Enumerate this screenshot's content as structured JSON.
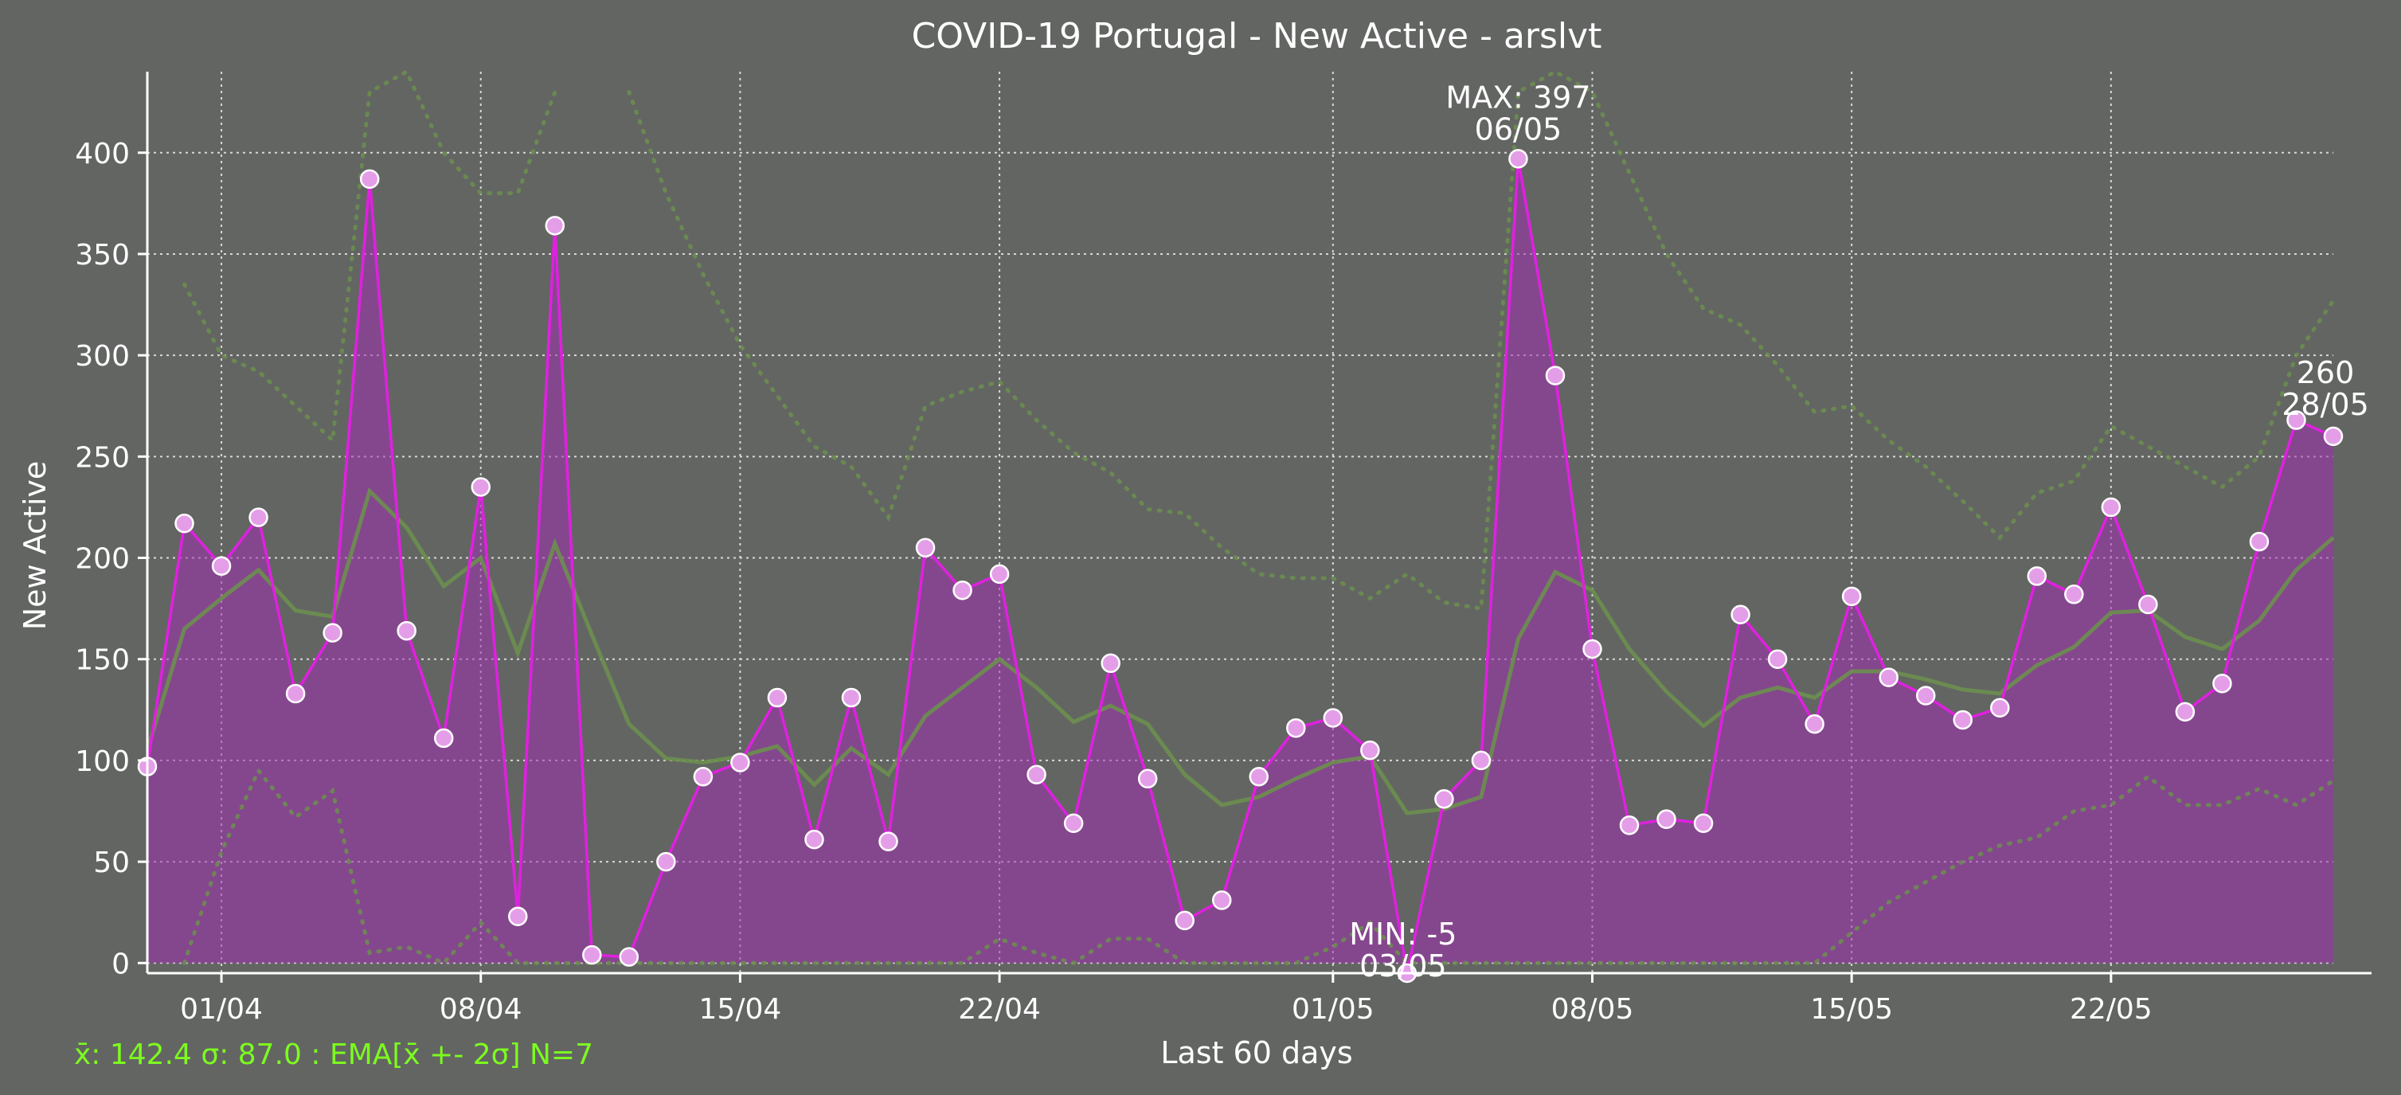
{
  "chart_data": {
    "type": "line",
    "title": "COVID-19 Portugal - New Active - arslvt",
    "xlabel": "Last 60 days",
    "ylabel": "New Active",
    "xlim": [
      "2020-03-30",
      "2020-05-28"
    ],
    "ylim": [
      -5,
      440
    ],
    "yticks": [
      0,
      50,
      100,
      150,
      200,
      250,
      300,
      350,
      400
    ],
    "xticks": [
      {
        "date": "2020-04-01",
        "label": "01/04"
      },
      {
        "date": "2020-04-08",
        "label": "08/04"
      },
      {
        "date": "2020-04-15",
        "label": "15/04"
      },
      {
        "date": "2020-04-22",
        "label": "22/04"
      },
      {
        "date": "2020-05-01",
        "label": "01/05"
      },
      {
        "date": "2020-05-08",
        "label": "08/05"
      },
      {
        "date": "2020-05-15",
        "label": "15/05"
      },
      {
        "date": "2020-05-22",
        "label": "22/05"
      }
    ],
    "grid": true,
    "x": [
      "2020-03-30",
      "2020-03-31",
      "2020-04-01",
      "2020-04-02",
      "2020-04-03",
      "2020-04-04",
      "2020-04-05",
      "2020-04-06",
      "2020-04-07",
      "2020-04-08",
      "2020-04-09",
      "2020-04-10",
      "2020-04-11",
      "2020-04-12",
      "2020-04-13",
      "2020-04-14",
      "2020-04-15",
      "2020-04-16",
      "2020-04-17",
      "2020-04-18",
      "2020-04-19",
      "2020-04-20",
      "2020-04-21",
      "2020-04-22",
      "2020-04-23",
      "2020-04-24",
      "2020-04-25",
      "2020-04-26",
      "2020-04-27",
      "2020-04-28",
      "2020-04-29",
      "2020-04-30",
      "2020-05-01",
      "2020-05-02",
      "2020-05-03",
      "2020-05-04",
      "2020-05-05",
      "2020-05-06",
      "2020-05-07",
      "2020-05-08",
      "2020-05-09",
      "2020-05-10",
      "2020-05-11",
      "2020-05-12",
      "2020-05-13",
      "2020-05-14",
      "2020-05-15",
      "2020-05-16",
      "2020-05-17",
      "2020-05-18",
      "2020-05-19",
      "2020-05-20",
      "2020-05-21",
      "2020-05-22",
      "2020-05-23",
      "2020-05-24",
      "2020-05-25",
      "2020-05-26",
      "2020-05-27",
      "2020-05-28"
    ],
    "series": [
      {
        "role": "daily",
        "color": "#e020e0",
        "values": [
          97,
          217,
          196,
          220,
          133,
          163,
          387,
          164,
          111,
          235,
          23,
          364,
          4,
          3,
          50,
          92,
          99,
          131,
          61,
          131,
          60,
          205,
          184,
          192,
          93,
          69,
          148,
          91,
          21,
          31,
          92,
          116,
          121,
          105,
          -5,
          81,
          100,
          397,
          290,
          155,
          68,
          71,
          69,
          172,
          150,
          118,
          181,
          141,
          132,
          120,
          126,
          191,
          182,
          225,
          177,
          124,
          138,
          208,
          268,
          260
        ]
      },
      {
        "role": "ema",
        "color": "#6b8f4e",
        "values": [
          105,
          165,
          180,
          194,
          174,
          171,
          233,
          215,
          186,
          200,
          153,
          207,
          162,
          118,
          101,
          99,
          102,
          107,
          88,
          106,
          93,
          122,
          136,
          150,
          136,
          119,
          127,
          118,
          93,
          78,
          82,
          91,
          99,
          102,
          74,
          76,
          82,
          160,
          193,
          184,
          155,
          134,
          117,
          131,
          136,
          131,
          144,
          144,
          140,
          135,
          133,
          147,
          156,
          173,
          174,
          161,
          155,
          169,
          194,
          210
        ]
      },
      {
        "role": "upper",
        "color": "#6b8f4e",
        "values": [
          null,
          335,
          300,
          292,
          275,
          258,
          430,
          440,
          400,
          380,
          380,
          430,
          null,
          430,
          380,
          340,
          305,
          280,
          255,
          245,
          220,
          275,
          282,
          287,
          268,
          252,
          242,
          224,
          222,
          205,
          192,
          190,
          190,
          180,
          192,
          178,
          175,
          430,
          440,
          430,
          390,
          350,
          323,
          315,
          295,
          272,
          275,
          258,
          245,
          228,
          210,
          232,
          238,
          265,
          255,
          245,
          235,
          250,
          300,
          327
        ]
      },
      {
        "role": "lower",
        "color": "#6b8f4e",
        "values": [
          null,
          0,
          55,
          95,
          72,
          85,
          5,
          8,
          0,
          20,
          0,
          0,
          0,
          0,
          0,
          0,
          0,
          0,
          0,
          0,
          0,
          0,
          0,
          12,
          5,
          0,
          12,
          12,
          0,
          0,
          0,
          0,
          8,
          20,
          0,
          0,
          0,
          0,
          0,
          0,
          0,
          0,
          0,
          0,
          0,
          0,
          15,
          30,
          40,
          50,
          58,
          62,
          75,
          78,
          92,
          78,
          78,
          86,
          78,
          90
        ]
      }
    ],
    "annotations": [
      {
        "date": "2020-05-06",
        "value": 397,
        "label": "MAX: 397",
        "sublabel": "06/05"
      },
      {
        "date": "2020-05-03",
        "value": -5,
        "label": "MIN: -5",
        "sublabel": "03/05"
      },
      {
        "date": "2020-05-28",
        "value": 260,
        "label": "260",
        "sublabel": "28/05"
      }
    ],
    "footer_stats": "x̄: 142.4 σ: 87.0 : EMA[x̄ +- 2σ] N=7"
  }
}
